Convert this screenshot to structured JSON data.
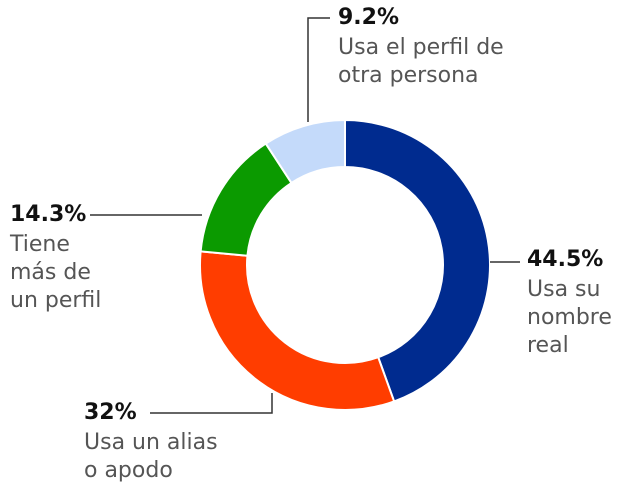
{
  "chart_data": {
    "type": "donut",
    "categories": [
      [
        "Usa su",
        "nombre",
        "real"
      ],
      [
        "Usa un alias",
        "o apodo"
      ],
      [
        "Tiene",
        "más de",
        "un perfil"
      ],
      [
        "Usa el perfil de",
        "otra persona"
      ]
    ],
    "values": [
      44.5,
      32,
      14.3,
      9.2
    ],
    "value_labels": [
      "44.5%",
      "32%",
      "14.3%",
      "9.2%"
    ],
    "colors": [
      "#002b8f",
      "#ff3d00",
      "#0b9a00",
      "#c4dafa"
    ]
  }
}
